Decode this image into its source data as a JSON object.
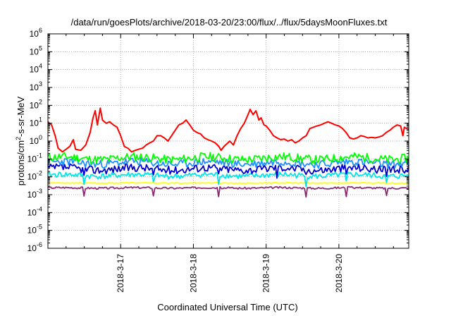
{
  "chart_data": {
    "type": "line",
    "title": "/data/run/goesPlots/archive/2018-03-20/23:00/flux/../flux/5daysMoonFluxes.txt",
    "xlabel": "Coordinated Universal Time (UTC)",
    "ylabel_base": "protons/cm",
    "ylabel_sup": "2",
    "ylabel_rest": "-s-sr-MeV",
    "y_scale": "log",
    "ylim_exp": [
      -6,
      6
    ],
    "ytick_exponents": [
      "-6",
      "-5",
      "-4",
      "-3",
      "-2",
      "-1",
      "0",
      "1",
      "2",
      "3",
      "4",
      "5",
      "6"
    ],
    "ytick_base": "10",
    "xlim_days": [
      16.0,
      20.96
    ],
    "xticks": [
      {
        "label": "2018-3-17",
        "day": 17.0
      },
      {
        "label": "2018-3-18",
        "day": 18.0
      },
      {
        "label": "2018-3-19",
        "day": 19.0
      },
      {
        "label": "2018-3-20",
        "day": 20.0
      }
    ],
    "grid": true,
    "legend": "none",
    "series": [
      {
        "color": "#ff0000",
        "kind": "main",
        "points": [
          [
            16.0,
            12
          ],
          [
            16.05,
            8
          ],
          [
            16.1,
            2
          ],
          [
            16.14,
            0.4
          ],
          [
            16.2,
            0.25
          ],
          [
            16.25,
            0.35
          ],
          [
            16.3,
            0.5
          ],
          [
            16.35,
            1.2
          ],
          [
            16.38,
            0.35
          ],
          [
            16.45,
            0.3
          ],
          [
            16.52,
            0.6
          ],
          [
            16.58,
            3
          ],
          [
            16.62,
            20
          ],
          [
            16.65,
            50
          ],
          [
            16.68,
            8
          ],
          [
            16.72,
            70
          ],
          [
            16.75,
            15
          ],
          [
            16.8,
            10
          ],
          [
            16.85,
            12
          ],
          [
            16.9,
            8
          ],
          [
            16.95,
            6
          ],
          [
            17.0,
            2
          ],
          [
            17.05,
            0.5
          ],
          [
            17.1,
            0.4
          ],
          [
            17.15,
            0.25
          ],
          [
            17.2,
            0.3
          ],
          [
            17.25,
            0.35
          ],
          [
            17.3,
            0.4
          ],
          [
            17.35,
            0.6
          ],
          [
            17.4,
            0.8
          ],
          [
            17.45,
            1.0
          ],
          [
            17.5,
            2
          ],
          [
            17.55,
            2
          ],
          [
            17.6,
            1.5
          ],
          [
            17.65,
            1.0
          ],
          [
            17.7,
            2
          ],
          [
            17.75,
            4
          ],
          [
            17.8,
            8
          ],
          [
            17.85,
            10
          ],
          [
            17.9,
            15
          ],
          [
            17.95,
            8
          ],
          [
            18.0,
            4
          ],
          [
            18.05,
            3
          ],
          [
            18.1,
            2.5
          ],
          [
            18.15,
            1.5
          ],
          [
            18.2,
            1.2
          ],
          [
            18.25,
            1.0
          ],
          [
            18.3,
            0.8
          ],
          [
            18.35,
            0.5
          ],
          [
            18.38,
            0.3
          ],
          [
            18.42,
            0.5
          ],
          [
            18.5,
            1
          ],
          [
            18.55,
            0.6
          ],
          [
            18.6,
            2
          ],
          [
            18.65,
            5
          ],
          [
            18.7,
            10
          ],
          [
            18.75,
            30
          ],
          [
            18.78,
            60
          ],
          [
            18.82,
            30
          ],
          [
            18.86,
            50
          ],
          [
            18.9,
            15
          ],
          [
            18.93,
            20
          ],
          [
            18.97,
            8
          ],
          [
            19.0,
            7
          ],
          [
            19.05,
            4
          ],
          [
            19.1,
            2
          ],
          [
            19.15,
            1.5
          ],
          [
            19.2,
            1.2
          ],
          [
            19.25,
            1.3
          ],
          [
            19.3,
            1.0
          ],
          [
            19.35,
            1.2
          ],
          [
            19.4,
            0.8
          ],
          [
            19.45,
            1.0
          ],
          [
            19.5,
            1.5
          ],
          [
            19.55,
            2
          ],
          [
            19.6,
            5
          ],
          [
            19.65,
            6
          ],
          [
            19.7,
            7
          ],
          [
            19.75,
            8
          ],
          [
            19.8,
            10
          ],
          [
            19.85,
            12
          ],
          [
            19.9,
            10
          ],
          [
            19.95,
            8
          ],
          [
            20.0,
            7
          ],
          [
            20.05,
            5
          ],
          [
            20.1,
            3
          ],
          [
            20.15,
            1.5
          ],
          [
            20.2,
            1.3
          ],
          [
            20.25,
            1.5
          ],
          [
            20.3,
            2
          ],
          [
            20.35,
            1.8
          ],
          [
            20.4,
            1.5
          ],
          [
            20.45,
            1.6
          ],
          [
            20.5,
            1.5
          ],
          [
            20.55,
            1.7
          ],
          [
            20.6,
            2
          ],
          [
            20.65,
            3
          ],
          [
            20.7,
            4
          ],
          [
            20.75,
            6
          ],
          [
            20.8,
            8
          ],
          [
            20.85,
            7
          ],
          [
            20.88,
            2
          ],
          [
            20.9,
            6
          ],
          [
            20.93,
            5
          ],
          [
            20.96,
            4.5
          ]
        ]
      },
      {
        "color": "#00ff00",
        "kind": "noise",
        "base": 0.11,
        "spread": 0.55,
        "dips": [],
        "seed": 11
      },
      {
        "color": "#1e90ff",
        "kind": "noise",
        "base": 0.06,
        "spread": 0.5,
        "dips": [],
        "seed": 23
      },
      {
        "color": "#0000cd",
        "kind": "noise",
        "base": 0.028,
        "spread": 0.5,
        "dips": [
          16.5,
          17.45,
          18.35,
          19.15,
          19.55,
          20.1,
          20.65
        ],
        "seed": 37
      },
      {
        "color": "#00e5e5",
        "kind": "noise",
        "base": 0.012,
        "spread": 0.35,
        "dips": [
          16.5,
          17.45,
          18.35,
          19.55,
          20.1,
          20.65
        ],
        "seed": 41
      },
      {
        "color": "#ffff00",
        "kind": "noise",
        "base": 0.0045,
        "spread": 0.05,
        "dips": [],
        "seed": 53
      },
      {
        "color": "#8b2a6e",
        "kind": "noise",
        "base": 0.0024,
        "spread": 0.12,
        "dips": [
          16.5,
          17.45,
          18.35,
          19.55,
          20.1,
          20.65
        ],
        "seed": 67
      }
    ]
  }
}
